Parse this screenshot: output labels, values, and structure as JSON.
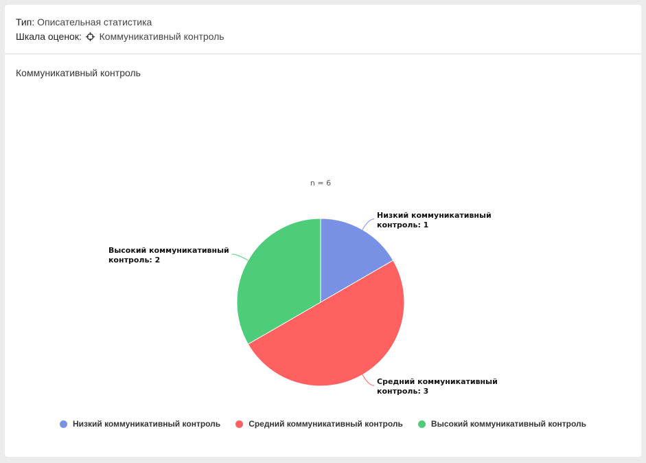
{
  "header": {
    "type_label": "Тип:",
    "type_value": "Описательная статистика",
    "scale_label": "Шкала оценок:",
    "scale_icon": "crosshair-icon",
    "scale_value": "Коммуникативный контроль"
  },
  "section": {
    "title": "Коммуникативный контроль"
  },
  "chart_data": {
    "type": "pie",
    "title": "",
    "annotation": "n = 6",
    "slices": [
      {
        "name": "Низкий коммуникативный контроль",
        "value": 1,
        "color": "#7891e4",
        "label_line1": "Низкий коммуникативный",
        "label_line2": "контроль: 1"
      },
      {
        "name": "Средний коммуникативный контроль",
        "value": 3,
        "color": "#ff6060",
        "label_line1": "Средний коммуникативный",
        "label_line2": "контроль: 3"
      },
      {
        "name": "Высокий коммуникативный контроль",
        "value": 2,
        "color": "#4dcc7a",
        "label_line1": "Высокий коммуникативный",
        "label_line2": "контроль: 2"
      }
    ],
    "legend_position": "bottom"
  }
}
